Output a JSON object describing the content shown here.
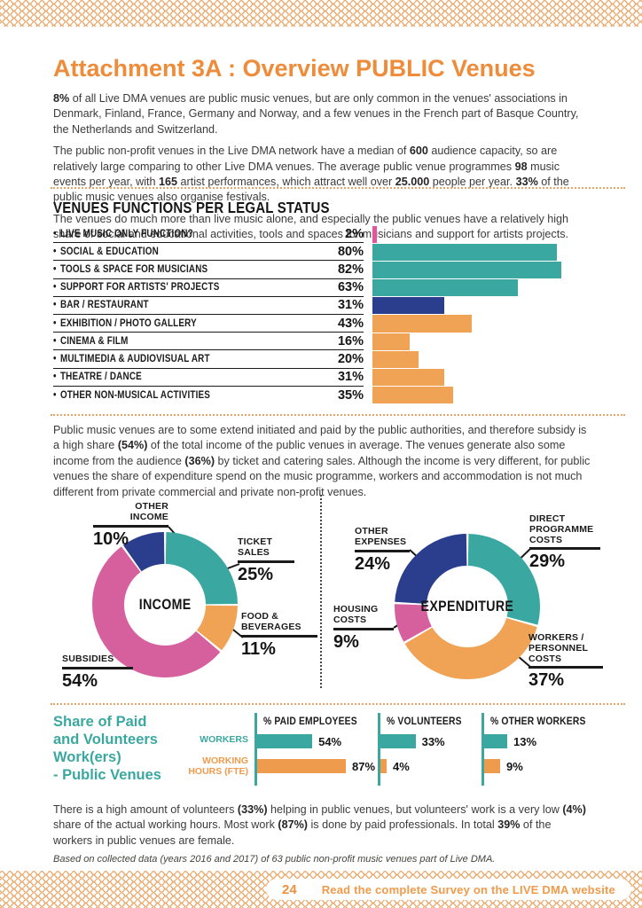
{
  "page_title": "Attachment 3A : Overview PUBLIC Venues",
  "colors": {
    "accent_orange": "#ef8c3a",
    "teal": "#3aa8a0",
    "orange": "#f0a255",
    "pink": "#d65f9e",
    "bright_pink": "#e0559b",
    "blue": "#2b3e8e",
    "pattern_orange": "#e8a768"
  },
  "intro": {
    "p1": [
      {
        "t": "8%",
        "b": true
      },
      {
        "t": " of all Live DMA venues are public music venues, but are only common in the venues' associations in Denmark, Finland, France, Germany and Norway, and a few venues in the French part of Basque Country, the Netherlands and Switzerland."
      }
    ],
    "p2": [
      {
        "t": "The public non-profit venues in the Live DMA network have a median of "
      },
      {
        "t": "600",
        "b": true
      },
      {
        "t": " audience capacity, so are relatively large comparing to other Live DMA venues. The average public venue programmes "
      },
      {
        "t": "98",
        "b": true
      },
      {
        "t": " music events per year, with "
      },
      {
        "t": "165",
        "b": true
      },
      {
        "t": " artist performances, which attract well over "
      },
      {
        "t": "25.000",
        "b": true
      },
      {
        "t": " people per year. "
      },
      {
        "t": "33%",
        "b": true
      },
      {
        "t": " of the public music venues also organise festivals."
      }
    ],
    "p3": [
      {
        "t": "The venues do much more than live music alone, and especially the public venues have a relatively high share of social and educational activities, tools and spaces for musicians and support for artists projects."
      }
    ]
  },
  "functions_chart": {
    "title": "VENUES FUNCTIONS PER LEGAL STATUS",
    "rows": [
      {
        "label": "LIVE MUSIC ONLY FUNCTION?",
        "pct": "2%",
        "value": 2,
        "color": "#e0559b"
      },
      {
        "label": "SOCIAL & EDUCATION",
        "pct": "80%",
        "value": 80,
        "color": "#3aa8a0"
      },
      {
        "label": "TOOLS & SPACE FOR MUSICIANS",
        "pct": "82%",
        "value": 82,
        "color": "#3aa8a0"
      },
      {
        "label": "SUPPORT FOR ARTISTS' PROJECTS",
        "pct": "63%",
        "value": 63,
        "color": "#3aa8a0"
      },
      {
        "label": "BAR / RESTAURANT",
        "pct": "31%",
        "value": 31,
        "color": "#2b3e8e"
      },
      {
        "label": "EXHIBITION / PHOTO GALLERY",
        "pct": "43%",
        "value": 43,
        "color": "#f0a255"
      },
      {
        "label": "CINEMA & FILM",
        "pct": "16%",
        "value": 16,
        "color": "#f0a255"
      },
      {
        "label": "MULTIMEDIA & AUDIOVISUAL ART",
        "pct": "20%",
        "value": 20,
        "color": "#f0a255"
      },
      {
        "label": "THEATRE / DANCE",
        "pct": "31%",
        "value": 31,
        "color": "#f0a255"
      },
      {
        "label": "OTHER NON-MUSICAL ACTIVITIES",
        "pct": "35%",
        "value": 35,
        "color": "#f0a255"
      }
    ]
  },
  "middle_paragraph": [
    {
      "t": "Public music venues are to some extend initiated and paid by the public authorities, and therefore subsidy is a high share "
    },
    {
      "t": "(54%)",
      "b": true
    },
    {
      "t": " of the total income of the public venues in average. The venues generate also some income from the audience "
    },
    {
      "t": "(36%)",
      "b": true
    },
    {
      "t": " by ticket and catering sales. Although the income is very different, for public venues the share of expenditure spend on the music programme, workers and accommodation is not much different from private commercial and private non-profit venues."
    }
  ],
  "income_chart": {
    "center_label": "INCOME",
    "segments": [
      {
        "name": "TICKET\nSALES",
        "pct": "25%",
        "value": 25,
        "color": "#3aa8a0"
      },
      {
        "name": "FOOD &\nBEVERAGES",
        "pct": "11%",
        "value": 11,
        "color": "#f0a255"
      },
      {
        "name": "SUBSIDIES",
        "pct": "54%",
        "value": 54,
        "color": "#d65f9e"
      },
      {
        "name": "OTHER\nINCOME",
        "pct": "10%",
        "value": 10,
        "color": "#2b3e8e"
      }
    ]
  },
  "expenditure_chart": {
    "center_label": "EXPENDITURE",
    "segments": [
      {
        "name": "DIRECT\nPROGRAMME\nCOSTS",
        "pct": "29%",
        "value": 29,
        "color": "#3aa8a0"
      },
      {
        "name": "WORKERS /\nPERSONNEL\nCOSTS",
        "pct": "37%",
        "value": 37,
        "color": "#f0a255"
      },
      {
        "name": "HOUSING\nCOSTS",
        "pct": "9%",
        "value": 9,
        "color": "#d65f9e"
      },
      {
        "name": "OTHER\nEXPENSES",
        "pct": "24%",
        "value": 24,
        "color": "#2b3e8e"
      }
    ]
  },
  "workers_table": {
    "title": "Share of Paid\nand Volunteers\nWork(ers)\n- Public Venues",
    "columns": [
      "% PAID EMPLOYEES",
      "% VOLUNTEERS",
      "% OTHER WORKERS"
    ],
    "rows": [
      {
        "label": "WORKERS",
        "color": "#3aa8a0",
        "values": [
          54,
          33,
          13
        ],
        "pcts": [
          "54%",
          "33%",
          "13%"
        ]
      },
      {
        "label": "WORKING\nHOURS (FTE)",
        "color": "#ef9b4e",
        "values": [
          87,
          4,
          9
        ],
        "pcts": [
          "87%",
          "4%",
          "9%"
        ]
      }
    ]
  },
  "conclusion": [
    {
      "t": "There is a high amount of volunteers "
    },
    {
      "t": "(33%)",
      "b": true
    },
    {
      "t": " helping in public venues, but volunteers' work is a very low "
    },
    {
      "t": "(4%)",
      "b": true
    },
    {
      "t": " share of the actual working hours. Most work "
    },
    {
      "t": "(87%)",
      "b": true
    },
    {
      "t": " is done by paid professionals. In total "
    },
    {
      "t": "39%",
      "b": true
    },
    {
      "t": " of the workers in public venues are female."
    }
  ],
  "footnote": "Based on collected data (years 2016 and 2017) of 63 public non-profit music venues part of Live DMA.",
  "footer": {
    "page_number": "24",
    "link_text": "Read the complete Survey on the LIVE DMA website"
  },
  "chart_data": [
    {
      "type": "bar",
      "orientation": "horizontal",
      "title": "VENUES FUNCTIONS PER LEGAL STATUS",
      "categories": [
        "LIVE MUSIC ONLY FUNCTION?",
        "SOCIAL & EDUCATION",
        "TOOLS & SPACE FOR MUSICIANS",
        "SUPPORT FOR ARTISTS' PROJECTS",
        "BAR / RESTAURANT",
        "EXHIBITION / PHOTO GALLERY",
        "CINEMA & FILM",
        "MULTIMEDIA & AUDIOVISUAL ART",
        "THEATRE / DANCE",
        "OTHER NON-MUSICAL ACTIVITIES"
      ],
      "values": [
        2,
        80,
        82,
        63,
        31,
        43,
        16,
        20,
        31,
        35
      ],
      "unit": "%",
      "xlim": [
        0,
        100
      ]
    },
    {
      "type": "pie",
      "donut": true,
      "title": "INCOME",
      "labels": [
        "TICKET SALES",
        "FOOD & BEVERAGES",
        "SUBSIDIES",
        "OTHER INCOME"
      ],
      "values": [
        25,
        11,
        54,
        10
      ],
      "unit": "%"
    },
    {
      "type": "pie",
      "donut": true,
      "title": "EXPENDITURE",
      "labels": [
        "DIRECT PROGRAMME COSTS",
        "WORKERS / PERSONNEL COSTS",
        "HOUSING COSTS",
        "OTHER EXPENSES"
      ],
      "values": [
        29,
        37,
        9,
        24
      ],
      "unit": "%"
    },
    {
      "type": "table",
      "title": "Share of Paid and Volunteers Work(ers) - Public Venues",
      "columns": [
        "% PAID EMPLOYEES",
        "% VOLUNTEERS",
        "% OTHER WORKERS"
      ],
      "rows": [
        {
          "label": "WORKERS",
          "values": [
            54,
            33,
            13
          ]
        },
        {
          "label": "WORKING HOURS (FTE)",
          "values": [
            87,
            4,
            9
          ]
        }
      ],
      "unit": "%"
    }
  ]
}
